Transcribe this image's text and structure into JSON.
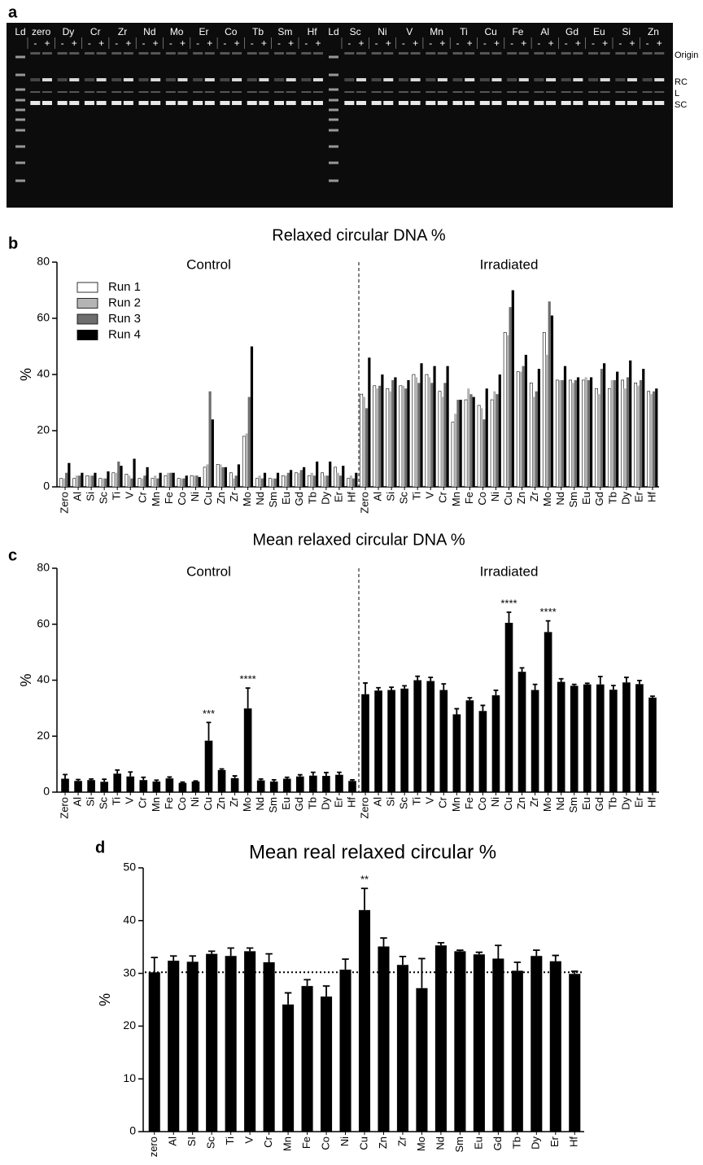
{
  "panel_labels": [
    "a",
    "b",
    "c",
    "d"
  ],
  "gel": {
    "lanes": [
      "Ld",
      "zero",
      "Dy",
      "Cr",
      "Zr",
      "Nd",
      "Mo",
      "Er",
      "Co",
      "Tb",
      "Sm",
      "Hf",
      "Ld",
      "Sc",
      "Ni",
      "V",
      "Mn",
      "Ti",
      "Cu",
      "Fe",
      "Al",
      "Gd",
      "Eu",
      "Si",
      "Zn"
    ],
    "signs": [
      "-",
      "+"
    ],
    "bands": [
      "Origin",
      "RC",
      "L",
      "SC"
    ]
  },
  "chart_data": [
    {
      "type": "grouped_bar",
      "title": "Relaxed circular DNA %",
      "y_label": "%",
      "group_labels": [
        "Control",
        "Irradiated"
      ],
      "categories": [
        "Zero",
        "Al",
        "Si",
        "Sc",
        "Ti",
        "V",
        "Cr",
        "Mn",
        "Fe",
        "Co",
        "Ni",
        "Cu",
        "Zn",
        "Zr",
        "Mo",
        "Nd",
        "Sm",
        "Eu",
        "Gd",
        "Tb",
        "Dy",
        "Er",
        "Hf",
        "Zero",
        "Al",
        "Si",
        "Sc",
        "Ti",
        "V",
        "Cr",
        "Mn",
        "Fe",
        "Co",
        "Ni",
        "Cu",
        "Zn",
        "Zr",
        "Mo",
        "Nd",
        "Sm",
        "Eu",
        "Gd",
        "Tb",
        "Dy",
        "Er",
        "Hf"
      ],
      "ylim": [
        0,
        80
      ],
      "yticks": [
        0,
        20,
        40,
        60,
        80
      ],
      "series": [
        {
          "name": "Run 1",
          "color": "#ffffff",
          "values": [
            3,
            3,
            4,
            3,
            5,
            4.5,
            3,
            3,
            4,
            3,
            4,
            7,
            8,
            5,
            18,
            3,
            3,
            4,
            5,
            4,
            5,
            7,
            3,
            33,
            36,
            35,
            36,
            40,
            40,
            34,
            23,
            31,
            29,
            31,
            55,
            41,
            37,
            55,
            38,
            38,
            38,
            35,
            35,
            38,
            37,
            34
          ]
        },
        {
          "name": "Run 2",
          "color": "#b4b4b4",
          "values": [
            3,
            4,
            4,
            3,
            5,
            4,
            3,
            4,
            5,
            3,
            4,
            8,
            8,
            3,
            19,
            4,
            3,
            4,
            5,
            5,
            4,
            5,
            4,
            32,
            35,
            34,
            36,
            39,
            39,
            32,
            26,
            35,
            28,
            34,
            54,
            41,
            32,
            47,
            38,
            37,
            39,
            33,
            38,
            35,
            36,
            33
          ]
        },
        {
          "name": "Run 3",
          "color": "#6e6e6e",
          "values": [
            5,
            4,
            4,
            3,
            9,
            3,
            4,
            3,
            5,
            3,
            4,
            34,
            7,
            4,
            32,
            3,
            3,
            5,
            6,
            4,
            4,
            4,
            3,
            28,
            36,
            38,
            35,
            37,
            37,
            37,
            31,
            33,
            24,
            33,
            64,
            43,
            34,
            66,
            38,
            38,
            38,
            42,
            38,
            39,
            38,
            34
          ]
        },
        {
          "name": "Run 4",
          "color": "#000000",
          "values": [
            8.5,
            5,
            5,
            5.5,
            7.5,
            10,
            7,
            5,
            5,
            4,
            3.5,
            24,
            7,
            8,
            50,
            5,
            5,
            6,
            7,
            9,
            9,
            7.5,
            5,
            46,
            40,
            39,
            38,
            44,
            43,
            43,
            31,
            32,
            35,
            40,
            70,
            47,
            42,
            61,
            43,
            39,
            39,
            44,
            41,
            45,
            42,
            35
          ]
        }
      ]
    },
    {
      "type": "bar",
      "title": "Mean relaxed circular DNA %",
      "y_label": "%",
      "group_labels": [
        "Control",
        "Irradiated"
      ],
      "categories": [
        "Zero",
        "Al",
        "Si",
        "Sc",
        "Ti",
        "V",
        "Cr",
        "Mn",
        "Fe",
        "Co",
        "Ni",
        "Cu",
        "Zn",
        "Zr",
        "Mo",
        "Nd",
        "Sm",
        "Eu",
        "Gd",
        "Tb",
        "Dy",
        "Er",
        "Hf",
        "Zero",
        "Al",
        "Si",
        "Sc",
        "Ti",
        "V",
        "Cr",
        "Mn",
        "Fe",
        "Co",
        "Ni",
        "Cu",
        "Zn",
        "Zr",
        "Mo",
        "Nd",
        "Sm",
        "Eu",
        "Gd",
        "Tb",
        "Dy",
        "Er",
        "Hf"
      ],
      "ylim": [
        0,
        80
      ],
      "yticks": [
        0,
        20,
        40,
        60,
        80
      ],
      "color": "#000000",
      "values": [
        4.8,
        4,
        4.3,
        3.7,
        6.6,
        5.6,
        4.3,
        3.8,
        4.9,
        3.3,
        3.8,
        18.4,
        7.9,
        5,
        29.9,
        4.2,
        3.8,
        4.8,
        5.6,
        5.9,
        5.8,
        6.2,
        4,
        35,
        36.3,
        36.5,
        37,
        40,
        39.7,
        36.5,
        27.8,
        32.8,
        29,
        34.6,
        60.5,
        43,
        36.5,
        57.2,
        39.4,
        38,
        38.5,
        38.5,
        36.6,
        39.2,
        38.6,
        33.8
      ],
      "errors": [
        1.5,
        0.5,
        0.4,
        0.9,
        1.3,
        1.6,
        1,
        0.5,
        0.5,
        0.3,
        0.2,
        6.5,
        0.4,
        0.8,
        7.3,
        0.5,
        0.6,
        0.5,
        0.6,
        1.2,
        1.2,
        0.9,
        0.4,
        4,
        1,
        1,
        1,
        1.4,
        1.3,
        2.2,
        2,
        0.9,
        2,
        1.8,
        3.8,
        1.4,
        2,
        4,
        1.1,
        0.5,
        0.4,
        2.8,
        1.5,
        1.8,
        1.3,
        0.5
      ],
      "significance": [
        null,
        null,
        null,
        null,
        null,
        null,
        null,
        null,
        null,
        null,
        null,
        "***",
        null,
        null,
        "****",
        null,
        null,
        null,
        null,
        null,
        null,
        null,
        null,
        null,
        null,
        null,
        null,
        null,
        null,
        null,
        null,
        null,
        null,
        null,
        "****",
        null,
        null,
        "****",
        null,
        null,
        null,
        null,
        null,
        null,
        null,
        null
      ]
    },
    {
      "type": "bar",
      "title": "Mean real relaxed circular %",
      "y_label": "%",
      "categories": [
        "zero",
        "Al",
        "SI",
        "Sc",
        "Ti",
        "V",
        "Cr",
        "Mn",
        "Fe",
        "Co",
        "Ni",
        "Cu",
        "Zn",
        "Zr",
        "Mo",
        "Nd",
        "Sm",
        "Eu",
        "Gd",
        "Tb",
        "Dy",
        "Er",
        "Hf"
      ],
      "ylim": [
        0,
        50
      ],
      "yticks": [
        0,
        10,
        20,
        30,
        40,
        50
      ],
      "color": "#000000",
      "values": [
        30.2,
        32.4,
        32.2,
        33.7,
        33.3,
        34.2,
        32.1,
        24.1,
        27.6,
        25.6,
        30.7,
        42,
        35.1,
        31.6,
        27.2,
        35.3,
        34.2,
        33.6,
        32.8,
        30.5,
        33.3,
        32.3,
        29.9
      ],
      "errors": [
        2.8,
        0.9,
        1.1,
        0.5,
        1.5,
        0.6,
        1.6,
        2.2,
        1.2,
        2,
        2,
        4.1,
        1.6,
        1.6,
        5.6,
        0.5,
        0.2,
        0.4,
        2.5,
        1.6,
        1.1,
        1.1,
        0.5
      ],
      "significance": [
        null,
        null,
        null,
        null,
        null,
        null,
        null,
        null,
        null,
        null,
        null,
        "**",
        null,
        null,
        null,
        null,
        null,
        null,
        null,
        null,
        null,
        null,
        null
      ],
      "reference_line": 30.2
    }
  ]
}
